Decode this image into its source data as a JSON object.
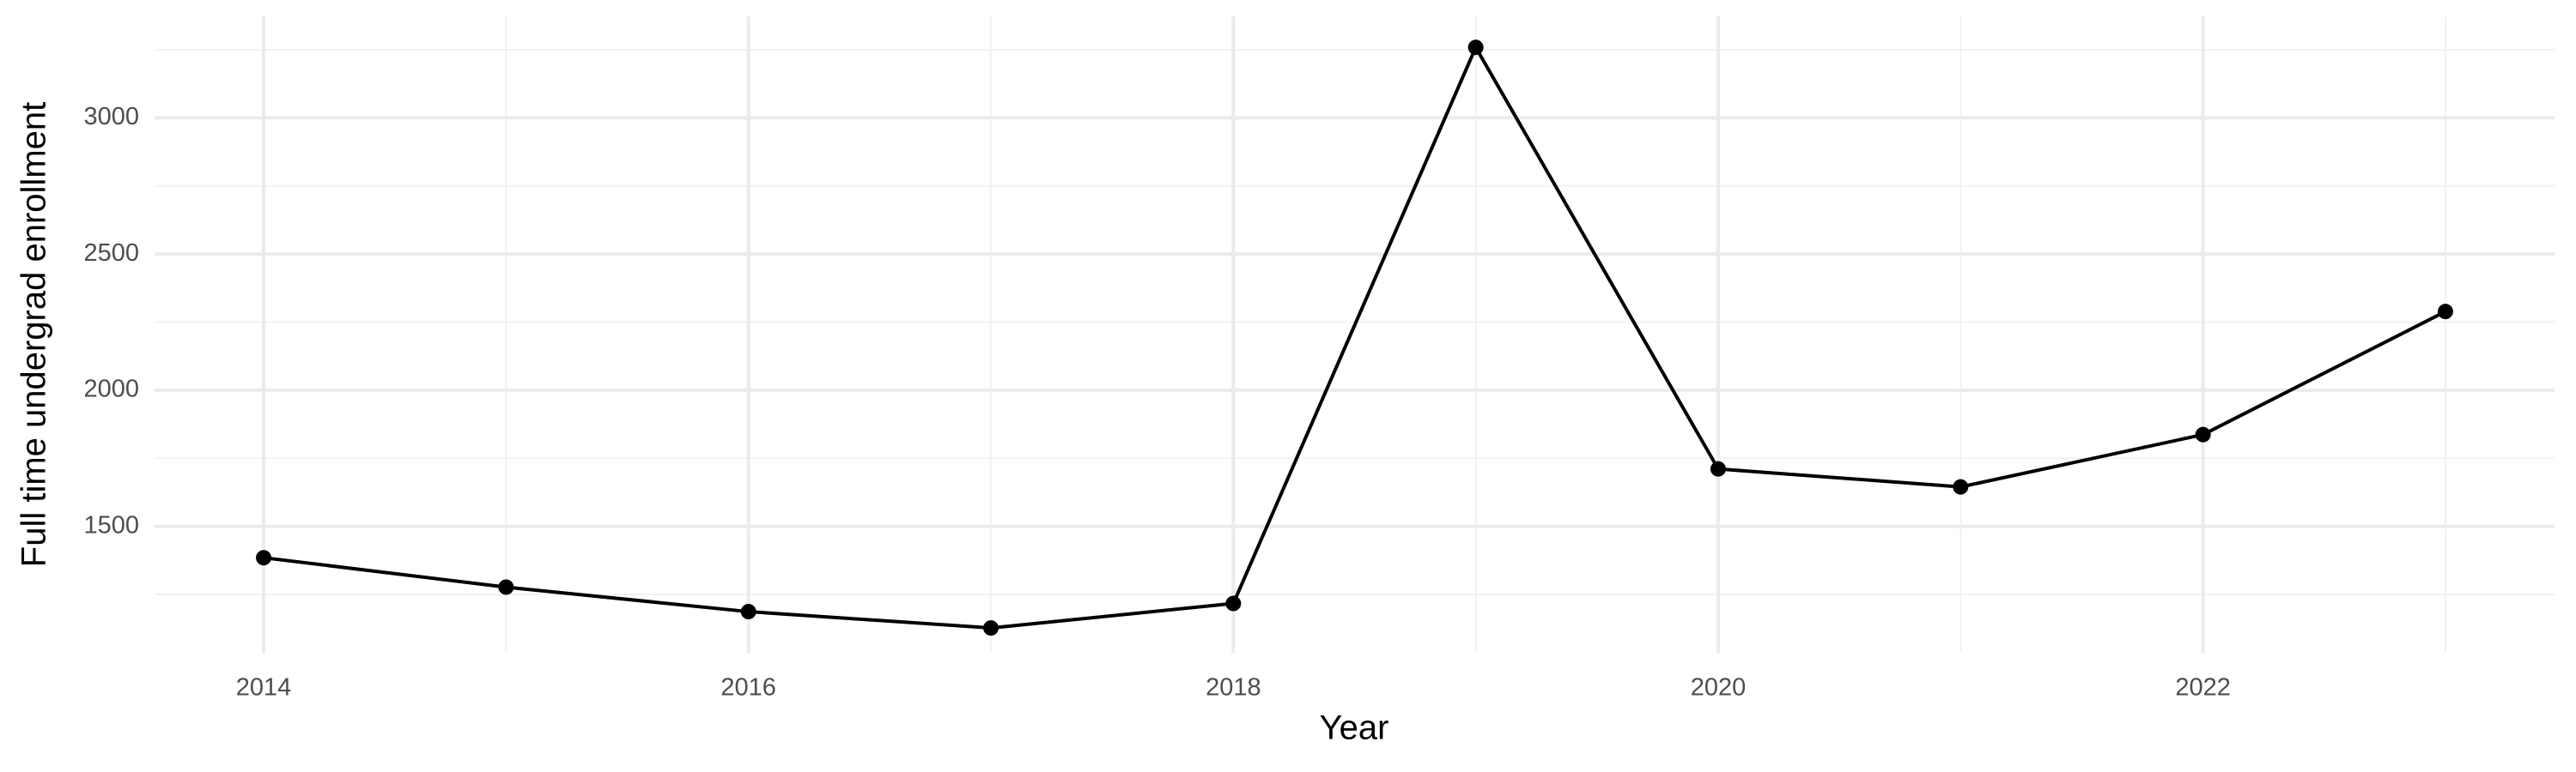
{
  "chart_data": {
    "type": "line",
    "x_label": "Year",
    "y_label": "Full time undergrad enrollment",
    "x": [
      2014,
      2015,
      2016,
      2017,
      2018,
      2019,
      2020,
      2021,
      2022,
      2023
    ],
    "values": [
      1385,
      1277,
      1187,
      1127,
      1217,
      3259,
      1711,
      1645,
      1837,
      2289
    ],
    "color": "#000000",
    "xlim": [
      2013.55,
      2023.45
    ],
    "xticks": [
      2014,
      2016,
      2018,
      2020,
      2022
    ],
    "minor_xticks": [
      2015,
      2017,
      2019,
      2021,
      2023
    ],
    "ylim": [
      1036,
      3373
    ],
    "yticks": [
      1500,
      2000,
      2500,
      3000
    ],
    "minor_yticks": [
      1250,
      1750,
      2250,
      2750,
      3250
    ],
    "grid": true
  }
}
